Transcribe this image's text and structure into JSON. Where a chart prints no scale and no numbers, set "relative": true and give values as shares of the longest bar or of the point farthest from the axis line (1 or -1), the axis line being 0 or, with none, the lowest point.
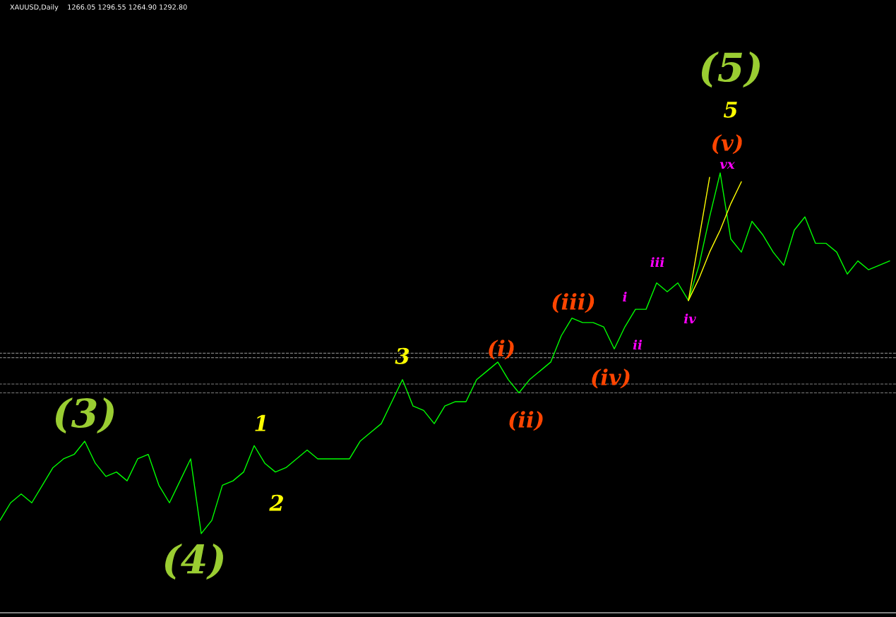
{
  "chart_data": {
    "type": "line",
    "relative": true,
    "title": "XAUUSD,Daily",
    "subtitle": "1266.05 1296.55 1264.90 1292.80",
    "categories": [
      null,
      null,
      null,
      null,
      null,
      null,
      null,
      null,
      null,
      null,
      null,
      null,
      null,
      null,
      null,
      null,
      null,
      null,
      null,
      null,
      null,
      null,
      null,
      null,
      null,
      null,
      null,
      null,
      null,
      null,
      null,
      null,
      null,
      null,
      null,
      null,
      null,
      null,
      null,
      null,
      null,
      null,
      null,
      null,
      null,
      null,
      null,
      null,
      null,
      null,
      null,
      null,
      null,
      null,
      null,
      null,
      null,
      null,
      null,
      null,
      null,
      null,
      null,
      null,
      null,
      null,
      null,
      null,
      null,
      null,
      null,
      null,
      null,
      null,
      null,
      null,
      null,
      null,
      null,
      null,
      null,
      null,
      null,
      null,
      null
    ],
    "series": [
      {
        "color": "#00ff00",
        "values": [
          0.21,
          0.25,
          0.27,
          0.25,
          0.29,
          0.33,
          0.35,
          0.36,
          0.39,
          0.34,
          0.31,
          0.32,
          0.3,
          0.35,
          0.36,
          0.29,
          0.25,
          0.3,
          0.35,
          0.18,
          0.21,
          0.29,
          0.3,
          0.32,
          0.38,
          0.34,
          0.32,
          0.33,
          0.35,
          0.37,
          0.35,
          0.35,
          0.35,
          0.35,
          0.39,
          0.41,
          0.43,
          0.48,
          0.53,
          0.47,
          0.46,
          0.43,
          0.47,
          0.48,
          0.48,
          0.53,
          0.55,
          0.57,
          0.53,
          0.5,
          0.53,
          0.55,
          0.57,
          0.63,
          0.67,
          0.66,
          0.66,
          0.65,
          0.6,
          0.65,
          0.69,
          0.69,
          0.75,
          0.73,
          0.75,
          0.71,
          0.79,
          0.9,
          1.0,
          0.85,
          0.82,
          0.89,
          0.86,
          0.82,
          0.79,
          0.87,
          0.9,
          0.84,
          0.84,
          0.82,
          0.77,
          0.8,
          0.78,
          0.79,
          0.8
        ]
      },
      {
        "color": "#ffff00",
        "values": [
          null,
          null,
          null,
          null,
          null,
          null,
          null,
          null,
          null,
          null,
          null,
          null,
          null,
          null,
          null,
          null,
          null,
          null,
          null,
          null,
          null,
          null,
          null,
          null,
          null,
          null,
          null,
          null,
          null,
          null,
          null,
          null,
          null,
          null,
          null,
          null,
          null,
          null,
          null,
          null,
          null,
          null,
          null,
          null,
          null,
          null,
          null,
          null,
          null,
          null,
          null,
          null,
          null,
          null,
          null,
          null,
          null,
          null,
          null,
          null,
          null,
          null,
          null,
          null,
          null,
          0.71,
          0.85,
          0.99,
          null,
          null,
          null,
          null,
          null,
          null,
          null,
          null,
          null,
          null,
          null,
          null,
          null,
          null,
          null,
          null,
          null
        ]
      },
      {
        "color": "#ffff00",
        "values": [
          null,
          null,
          null,
          null,
          null,
          null,
          null,
          null,
          null,
          null,
          null,
          null,
          null,
          null,
          null,
          null,
          null,
          null,
          null,
          null,
          null,
          null,
          null,
          null,
          null,
          null,
          null,
          null,
          null,
          null,
          null,
          null,
          null,
          null,
          null,
          null,
          null,
          null,
          null,
          null,
          null,
          null,
          null,
          null,
          null,
          null,
          null,
          null,
          null,
          null,
          null,
          null,
          null,
          null,
          null,
          null,
          null,
          null,
          null,
          null,
          null,
          null,
          null,
          null,
          null,
          0.71,
          0.76,
          0.82,
          0.87,
          0.93,
          0.98,
          null,
          null,
          null,
          null,
          null,
          null,
          null,
          null,
          null,
          null,
          null,
          null,
          null,
          null
        ]
      }
    ],
    "ref_lines": [
      {
        "axis": "y",
        "value": 0.59,
        "color": "#808080",
        "line_style": "dashed"
      },
      {
        "axis": "y",
        "value": 0.58,
        "color": "#808080",
        "line_style": "dashed"
      },
      {
        "axis": "y",
        "value": 0.52,
        "color": "#808080",
        "line_style": "dashed"
      },
      {
        "axis": "y",
        "value": 0.5,
        "color": "#808080",
        "line_style": "dashed"
      }
    ],
    "annotations": [
      "(3)",
      "(4)",
      "(5)",
      "1",
      "2",
      "3",
      "5",
      "(i)",
      "(ii)",
      "(iii)",
      "(iv)",
      "(v)",
      "i",
      "ii",
      "iii",
      "iv",
      "vx"
    ]
  }
}
